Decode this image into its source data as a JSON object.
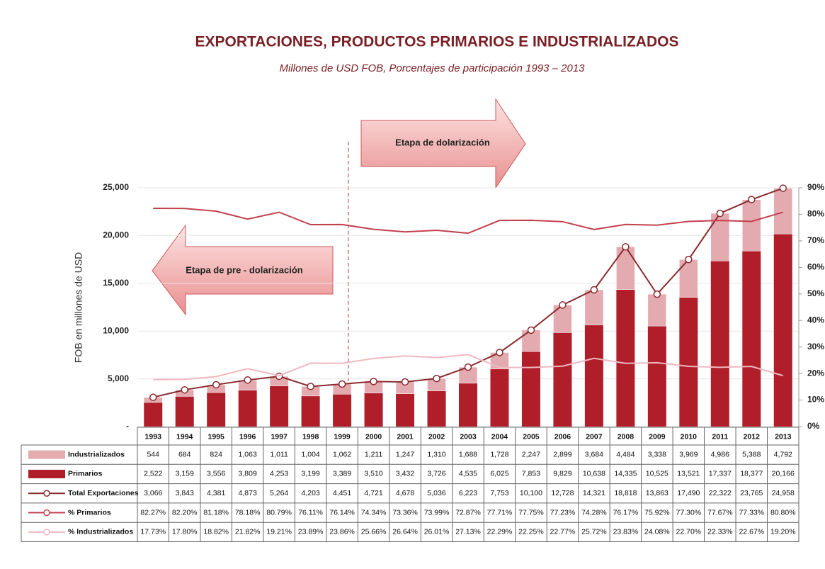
{
  "chart_data": {
    "type": "bar",
    "title": "EXPORTACIONES, PRODUCTOS PRIMARIOS E INDUSTRIALIZADOS",
    "subtitle": "Millones de USD FOB, Porcentajes de participación  1993 – 2013",
    "y_label": "FOB  en  millones de USD",
    "annotations": [
      "Etapa de dolarización",
      "Etapa de pre - dolarización"
    ],
    "categories": [
      "1993",
      "1994",
      "1995",
      "1996",
      "1997",
      "1998",
      "1999",
      "2000",
      "2001",
      "2002",
      "2003",
      "2004",
      "2005",
      "2006",
      "2007",
      "2008",
      "2009",
      "2010",
      "2011",
      "2012",
      "2013"
    ],
    "ylim": [
      0,
      25000
    ],
    "yticks": [
      {
        "value": 0,
        "label": "-"
      },
      {
        "value": 5000,
        "label": "5,000"
      },
      {
        "value": 10000,
        "label": "10,000"
      },
      {
        "value": 15000,
        "label": "15,000"
      },
      {
        "value": 20000,
        "label": "20,000"
      },
      {
        "value": 25000,
        "label": "25,000"
      }
    ],
    "y2lim": [
      0,
      90
    ],
    "y2ticks": [
      {
        "value": 0,
        "label": "0%"
      },
      {
        "value": 10,
        "label": "10%"
      },
      {
        "value": 20,
        "label": "20%"
      },
      {
        "value": 30,
        "label": "30%"
      },
      {
        "value": 40,
        "label": "40%"
      },
      {
        "value": 50,
        "label": "50%"
      },
      {
        "value": 60,
        "label": "60%"
      },
      {
        "value": 70,
        "label": "70%"
      },
      {
        "value": 80,
        "label": "80%"
      },
      {
        "value": 90,
        "label": "90%"
      }
    ],
    "grid": true,
    "series": [
      {
        "name": "Industrializados",
        "kind": "stacked-bar",
        "color": "#e3aab0",
        "values": [
          544,
          684,
          824,
          1063,
          1011,
          1004,
          1062,
          1211,
          1247,
          1310,
          1688,
          1728,
          2247,
          2899,
          3684,
          4484,
          3338,
          3969,
          4986,
          5388,
          4792
        ],
        "value_labels": [
          "544",
          "684",
          "824",
          "1,063",
          "1,011",
          "1,004",
          "1,062",
          "1,211",
          "1,247",
          "1,310",
          "1,688",
          "1,728",
          "2,247",
          "2,899",
          "3,684",
          "4,484",
          "3,338",
          "3,969",
          "4,986",
          "5,388",
          "4,792"
        ]
      },
      {
        "name": "Primarios",
        "kind": "bar",
        "color": "#b01e2a",
        "values": [
          2522,
          3159,
          3556,
          3809,
          4253,
          3199,
          3389,
          3510,
          3432,
          3726,
          4535,
          6025,
          7853,
          9829,
          10638,
          14335,
          10525,
          13521,
          17337,
          18377,
          20166
        ],
        "value_labels": [
          "2,522",
          "3,159",
          "3,556",
          "3,809",
          "4,253",
          "3,199",
          "3,389",
          "3,510",
          "3,432",
          "3,726",
          "4,535",
          "6,025",
          "7,853",
          "9,829",
          "10,638",
          "14,335",
          "10,525",
          "13,521",
          "17,337",
          "18,377",
          "20,166"
        ]
      },
      {
        "name": "Total Exportaciones",
        "kind": "line-marker",
        "color": "#8a2a2e",
        "values": [
          3066,
          3843,
          4381,
          4873,
          5264,
          4203,
          4451,
          4721,
          4678,
          5036,
          6223,
          7753,
          10100,
          12728,
          14321,
          18818,
          13863,
          17490,
          22322,
          23765,
          24958
        ],
        "value_labels": [
          "3,066",
          "3,843",
          "4,381",
          "4,873",
          "5,264",
          "4,203",
          "4,451",
          "4,721",
          "4,678",
          "5,036",
          "6,223",
          "7,753",
          "10,100",
          "12,728",
          "14,321",
          "18,818",
          "13,863",
          "17,490",
          "22,322",
          "23,765",
          "24,958"
        ]
      },
      {
        "name": "% Primarios",
        "kind": "line",
        "axis": "y2",
        "color": "#c2414e",
        "values": [
          82.27,
          82.2,
          81.18,
          78.18,
          80.79,
          76.11,
          76.14,
          74.34,
          73.36,
          73.99,
          72.87,
          77.71,
          77.75,
          77.23,
          74.28,
          76.17,
          75.92,
          77.3,
          77.67,
          77.33,
          80.8
        ],
        "value_labels": [
          "82.27%",
          "82.20%",
          "81.18%",
          "78.18%",
          "80.79%",
          "76.11%",
          "76.14%",
          "74.34%",
          "73.36%",
          "73.99%",
          "72.87%",
          "77.71%",
          "77.75%",
          "77.23%",
          "74.28%",
          "76.17%",
          "75.92%",
          "77.30%",
          "77.67%",
          "77.33%",
          "80.80%"
        ]
      },
      {
        "name": "% Industrializados",
        "kind": "line",
        "axis": "y2",
        "color": "#f0b8c0",
        "values": [
          17.73,
          17.8,
          18.82,
          21.82,
          19.21,
          23.89,
          23.86,
          25.66,
          26.64,
          26.01,
          27.13,
          22.29,
          22.25,
          22.77,
          25.72,
          23.83,
          24.08,
          22.7,
          22.33,
          22.67,
          19.2
        ],
        "value_labels": [
          "17.73%",
          "17.80%",
          "18.82%",
          "21.82%",
          "19.21%",
          "23.89%",
          "23.86%",
          "25.66%",
          "26.64%",
          "26.01%",
          "27.13%",
          "22.29%",
          "22.25%",
          "22.77%",
          "25.72%",
          "23.83%",
          "24.08%",
          "22.70%",
          "22.33%",
          "22.67%",
          "19.20%"
        ]
      }
    ]
  }
}
